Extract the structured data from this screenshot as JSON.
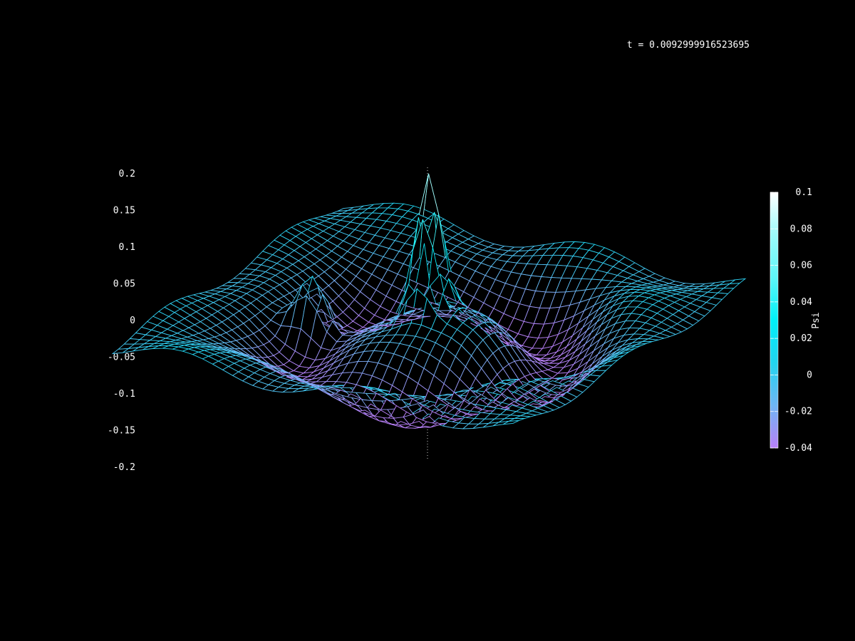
{
  "title": "t = 0.0092999916523695",
  "chart_data": {
    "type": "surface",
    "title": "t = 0.0092999916523695",
    "z_ticks": [
      "0.2",
      "0.15",
      "0.1",
      "0.05",
      "0",
      "-0.05",
      "-0.1",
      "-0.15",
      "-0.2"
    ],
    "zlim": [
      -0.2,
      0.2
    ],
    "colorbar": {
      "label": "Psi",
      "ticks": [
        "0.1",
        "0.08",
        "0.06",
        "0.04",
        "0.02",
        "0",
        "-0.02",
        "-0.04"
      ],
      "range": [
        -0.04,
        0.1
      ],
      "colors": [
        "#b880f8",
        "#6fb6f4",
        "#22d4f0",
        "#00f0f8",
        "#5ef6f8",
        "#9cfafa",
        "#ffffff"
      ]
    },
    "surface": {
      "description_free": true,
      "grid_n": 40,
      "x_range": [
        -1,
        1
      ],
      "y_range": [
        -1,
        1
      ],
      "peaks": [
        {
          "x": 0.0,
          "y": 0.0,
          "amplitude": 0.105,
          "width": 0.06
        },
        {
          "x": -0.55,
          "y": -0.05,
          "amplitude": 0.05,
          "width": 0.07
        }
      ],
      "trough": {
        "radius": 0.55,
        "depth": -0.04,
        "width": 0.16
      },
      "ripple_amplitude": 0.008
    },
    "grid": false,
    "background": "#000000",
    "mesh_color": "#6fcff0"
  }
}
